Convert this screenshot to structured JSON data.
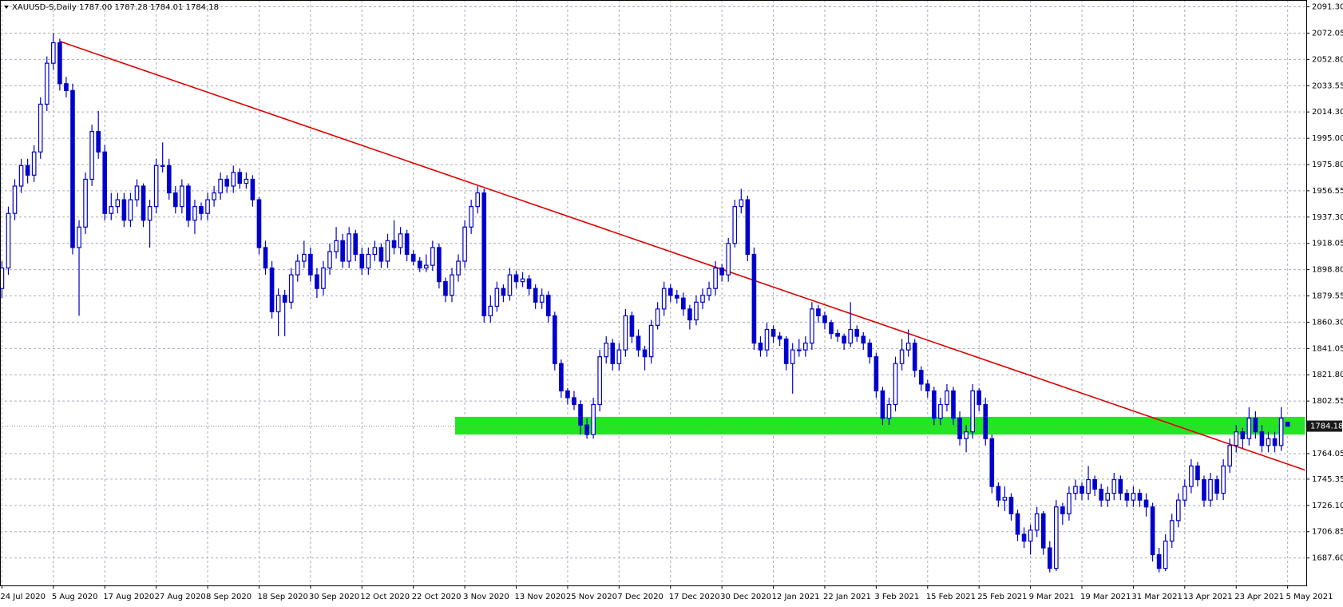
{
  "chart_data": {
    "type": "candlestick",
    "header": "XAUUSD-S,Daily  1787.00 1787.28 1784.01 1784.18",
    "up_color": "#ffffff",
    "down_color": "#0000cd",
    "outline_color": "#0000cd",
    "grid": true,
    "grid_color": "#a7adba",
    "xlim": [
      -0.3,
      202.9
    ],
    "ylim": [
      1667.5,
      2096.3
    ],
    "yticks": [
      {
        "value": 2091.3,
        "label": "2091.30"
      },
      {
        "value": 2072.05,
        "label": "2072.05"
      },
      {
        "value": 2052.8,
        "label": "2052.80"
      },
      {
        "value": 2033.55,
        "label": "2033.55"
      },
      {
        "value": 2014.3,
        "label": "2014.30"
      },
      {
        "value": 1995,
        "label": "1995.00"
      },
      {
        "value": 1975.8,
        "label": "1975.80"
      },
      {
        "value": 1956.55,
        "label": "1956.55"
      },
      {
        "value": 1937.3,
        "label": "1937.30"
      },
      {
        "value": 1918.05,
        "label": "1918.05"
      },
      {
        "value": 1898.8,
        "label": "1898.80"
      },
      {
        "value": 1879.55,
        "label": "1879.55"
      },
      {
        "value": 1860.3,
        "label": "1860.30"
      },
      {
        "value": 1841.05,
        "label": "1841.05"
      },
      {
        "value": 1821.8,
        "label": "1821.80"
      },
      {
        "value": 1802.55,
        "label": "1802.55"
      },
      {
        "value": 1764.05,
        "label": "1764.05"
      },
      {
        "value": 1745.35,
        "label": "1745.35"
      },
      {
        "value": 1726.1,
        "label": "1726.10"
      },
      {
        "value": 1706.85,
        "label": "1706.85"
      },
      {
        "value": 1687.6,
        "label": "1687.60"
      }
    ],
    "current_price": 1784.18,
    "trendline": {
      "color": "#e00000",
      "x": [
        9,
        202.7
      ],
      "y": [
        2066,
        1752
      ]
    },
    "zone": {
      "color": "#22e622",
      "x": [
        70.5,
        202.7
      ],
      "y": [
        1778,
        1791
      ]
    },
    "categories": [
      "24 Jul 2020",
      null,
      null,
      null,
      null,
      null,
      null,
      null,
      "5 Aug 2020",
      null,
      null,
      null,
      null,
      null,
      null,
      null,
      "17 Aug 2020",
      null,
      null,
      null,
      null,
      null,
      null,
      null,
      "27 Aug 2020",
      null,
      null,
      null,
      null,
      null,
      null,
      null,
      "8 Sep 2020",
      null,
      null,
      null,
      null,
      null,
      null,
      null,
      "18 Sep 2020",
      null,
      null,
      null,
      null,
      null,
      null,
      null,
      "30 Sep 2020",
      null,
      null,
      null,
      null,
      null,
      null,
      null,
      "12 Oct 2020",
      null,
      null,
      null,
      null,
      null,
      null,
      null,
      "22 Oct 2020",
      null,
      null,
      null,
      null,
      null,
      null,
      null,
      "3 Nov 2020",
      null,
      null,
      null,
      null,
      null,
      null,
      null,
      "13 Nov 2020",
      null,
      null,
      null,
      null,
      null,
      null,
      null,
      "25 Nov 2020",
      null,
      null,
      null,
      null,
      null,
      null,
      null,
      "7 Dec 2020",
      null,
      null,
      null,
      null,
      null,
      null,
      null,
      "17 Dec 2020",
      null,
      null,
      null,
      null,
      null,
      null,
      null,
      "30 Dec 2020",
      null,
      null,
      null,
      null,
      null,
      null,
      null,
      "12 Jan 2021",
      null,
      null,
      null,
      null,
      null,
      null,
      null,
      "22 Jan 2021",
      null,
      null,
      null,
      null,
      null,
      null,
      null,
      "3 Feb 2021",
      null,
      null,
      null,
      null,
      null,
      null,
      null,
      "15 Feb 2021",
      null,
      null,
      null,
      null,
      null,
      null,
      null,
      "25 Feb 2021",
      null,
      null,
      null,
      null,
      null,
      null,
      null,
      "9 Mar 2021",
      null,
      null,
      null,
      null,
      null,
      null,
      null,
      "19 Mar 2021",
      null,
      null,
      null,
      null,
      null,
      null,
      null,
      "31 Mar 2021",
      null,
      null,
      null,
      null,
      null,
      null,
      null,
      "13 Apr 2021",
      null,
      null,
      null,
      null,
      null,
      null,
      null,
      "23 Apr 2021",
      null,
      null,
      null,
      null,
      null,
      null,
      null,
      "5 May 2021"
    ],
    "open": [
      1885,
      1900,
      1940,
      1960,
      1975,
      1968,
      1985,
      2020,
      2050,
      2065,
      2035,
      2030,
      1915,
      1930,
      1965,
      2000,
      1985,
      1940,
      1945,
      1950,
      1935,
      1950,
      1960,
      1935,
      1945,
      1975,
      1975,
      1955,
      1945,
      1960,
      1935,
      1945,
      1940,
      1950,
      1955,
      1965,
      1960,
      1970,
      1962,
      1965,
      1950,
      1915,
      1900,
      1868,
      1880,
      1875,
      1895,
      1905,
      1910,
      1895,
      1885,
      1900,
      1912,
      1920,
      1905,
      1925,
      1910,
      1900,
      1910,
      1915,
      1905,
      1920,
      1915,
      1925,
      1910,
      1905,
      1900,
      1902,
      1915,
      1890,
      1880,
      1895,
      1905,
      1930,
      1945,
      1955,
      1865,
      1872,
      1885,
      1880,
      1895,
      1890,
      1892,
      1885,
      1875,
      1880,
      1865,
      1830,
      1810,
      1805,
      1800,
      1785,
      1778,
      1800,
      1835,
      1845,
      1830,
      1840,
      1865,
      1850,
      1840,
      1835,
      1858,
      1870,
      1885,
      1880,
      1878,
      1870,
      1862,
      1875,
      1880,
      1885,
      1900,
      1895,
      1918,
      1945,
      1950,
      1910,
      1845,
      1840,
      1855,
      1850,
      1848,
      1830,
      1840,
      1840,
      1845,
      1870,
      1865,
      1860,
      1852,
      1850,
      1845,
      1855,
      1850,
      1845,
      1835,
      1810,
      1790,
      1800,
      1830,
      1840,
      1845,
      1825,
      1815,
      1810,
      1790,
      1800,
      1810,
      1790,
      1775,
      1780,
      1810,
      1800,
      1775,
      1740,
      1730,
      1732,
      1720,
      1705,
      1700,
      1708,
      1720,
      1695,
      1680,
      1725,
      1720,
      1735,
      1740,
      1735,
      1745,
      1738,
      1730,
      1735,
      1745,
      1735,
      1730,
      1735,
      1730,
      1725,
      1690,
      1680,
      1700,
      1715,
      1730,
      1740,
      1755,
      1745,
      1730,
      1745,
      1735,
      1755,
      1770,
      1780,
      1775,
      1790,
      1780,
      1770,
      1775,
      1770,
      1787
    ],
    "high": [
      1905,
      1945,
      1965,
      1980,
      1980,
      1990,
      2025,
      2055,
      2072,
      2068,
      2040,
      2035,
      1935,
      1970,
      2005,
      2015,
      1990,
      1955,
      1955,
      1955,
      1955,
      1965,
      1962,
      1950,
      1980,
      1992,
      1980,
      1960,
      1965,
      1962,
      1950,
      1948,
      1955,
      1960,
      1970,
      1968,
      1975,
      1973,
      1970,
      1968,
      1952,
      1920,
      1905,
      1885,
      1884,
      1900,
      1910,
      1920,
      1915,
      1900,
      1905,
      1918,
      1930,
      1925,
      1930,
      1928,
      1915,
      1915,
      1920,
      1918,
      1925,
      1935,
      1930,
      1928,
      1913,
      1908,
      1910,
      1920,
      1918,
      1893,
      1900,
      1910,
      1935,
      1950,
      1960,
      1958,
      1880,
      1890,
      1888,
      1900,
      1898,
      1897,
      1895,
      1888,
      1885,
      1883,
      1868,
      1833,
      1812,
      1810,
      1803,
      1790,
      1805,
      1840,
      1850,
      1848,
      1845,
      1870,
      1868,
      1855,
      1843,
      1862,
      1875,
      1890,
      1888,
      1884,
      1882,
      1873,
      1880,
      1885,
      1890,
      1905,
      1903,
      1922,
      1950,
      1958,
      1953,
      1915,
      1850,
      1860,
      1858,
      1853,
      1850,
      1845,
      1848,
      1850,
      1875,
      1873,
      1868,
      1862,
      1855,
      1852,
      1875,
      1858,
      1853,
      1848,
      1838,
      1813,
      1805,
      1835,
      1848,
      1855,
      1848,
      1828,
      1818,
      1813,
      1805,
      1815,
      1813,
      1795,
      1785,
      1815,
      1812,
      1805,
      1778,
      1743,
      1740,
      1735,
      1723,
      1710,
      1712,
      1725,
      1722,
      1700,
      1730,
      1728,
      1740,
      1745,
      1743,
      1755,
      1748,
      1742,
      1740,
      1750,
      1748,
      1738,
      1740,
      1738,
      1735,
      1728,
      1695,
      1705,
      1720,
      1735,
      1745,
      1760,
      1758,
      1748,
      1750,
      1748,
      1760,
      1775,
      1785,
      1783,
      1798,
      1795,
      1785,
      1780,
      1780,
      1798,
      1787.28
    ],
    "low": [
      1878,
      1895,
      1935,
      1955,
      1962,
      1963,
      1980,
      2015,
      2045,
      2030,
      2025,
      1910,
      1865,
      1925,
      1960,
      1980,
      1935,
      1935,
      1940,
      1930,
      1930,
      1945,
      1930,
      1915,
      1940,
      1970,
      1950,
      1940,
      1940,
      1930,
      1925,
      1935,
      1935,
      1945,
      1950,
      1955,
      1955,
      1958,
      1958,
      1945,
      1910,
      1895,
      1863,
      1850,
      1850,
      1870,
      1890,
      1900,
      1890,
      1878,
      1880,
      1895,
      1907,
      1900,
      1900,
      1905,
      1895,
      1895,
      1905,
      1900,
      1900,
      1910,
      1910,
      1905,
      1902,
      1897,
      1897,
      1898,
      1885,
      1875,
      1875,
      1890,
      1900,
      1925,
      1940,
      1860,
      1860,
      1868,
      1875,
      1876,
      1885,
      1886,
      1880,
      1870,
      1870,
      1860,
      1825,
      1805,
      1800,
      1796,
      1778,
      1775,
      1775,
      1795,
      1830,
      1825,
      1825,
      1835,
      1845,
      1835,
      1825,
      1830,
      1855,
      1865,
      1875,
      1874,
      1865,
      1855,
      1858,
      1870,
      1876,
      1880,
      1890,
      1890,
      1915,
      1940,
      1905,
      1840,
      1835,
      1835,
      1845,
      1843,
      1825,
      1808,
      1835,
      1835,
      1840,
      1860,
      1855,
      1848,
      1846,
      1840,
      1842,
      1846,
      1840,
      1830,
      1805,
      1785,
      1785,
      1795,
      1825,
      1835,
      1820,
      1810,
      1805,
      1785,
      1785,
      1795,
      1785,
      1770,
      1765,
      1775,
      1795,
      1770,
      1735,
      1725,
      1722,
      1715,
      1700,
      1695,
      1690,
      1703,
      1690,
      1677,
      1678,
      1712,
      1715,
      1730,
      1730,
      1730,
      1733,
      1725,
      1725,
      1730,
      1730,
      1725,
      1725,
      1725,
      1718,
      1685,
      1677,
      1678,
      1695,
      1710,
      1725,
      1735,
      1740,
      1725,
      1725,
      1730,
      1730,
      1750,
      1765,
      1768,
      1770,
      1775,
      1765,
      1765,
      1765,
      1766,
      1784.01
    ],
    "close": [
      1900,
      1940,
      1960,
      1975,
      1968,
      1985,
      2020,
      2050,
      2065,
      2035,
      2030,
      1915,
      1930,
      1965,
      2000,
      1985,
      1940,
      1945,
      1950,
      1935,
      1950,
      1960,
      1935,
      1945,
      1975,
      1975,
      1955,
      1945,
      1960,
      1935,
      1945,
      1940,
      1950,
      1955,
      1965,
      1960,
      1970,
      1962,
      1965,
      1950,
      1915,
      1900,
      1868,
      1880,
      1875,
      1895,
      1905,
      1910,
      1895,
      1885,
      1900,
      1912,
      1920,
      1905,
      1925,
      1910,
      1900,
      1910,
      1915,
      1905,
      1920,
      1915,
      1925,
      1910,
      1905,
      1900,
      1902,
      1915,
      1890,
      1880,
      1895,
      1905,
      1930,
      1945,
      1955,
      1865,
      1872,
      1885,
      1880,
      1895,
      1890,
      1892,
      1885,
      1875,
      1880,
      1865,
      1830,
      1810,
      1805,
      1800,
      1785,
      1778,
      1800,
      1835,
      1845,
      1830,
      1840,
      1865,
      1850,
      1840,
      1835,
      1858,
      1870,
      1885,
      1880,
      1878,
      1870,
      1862,
      1875,
      1880,
      1885,
      1900,
      1895,
      1918,
      1945,
      1950,
      1910,
      1845,
      1840,
      1855,
      1850,
      1848,
      1830,
      1840,
      1840,
      1845,
      1870,
      1865,
      1860,
      1852,
      1850,
      1845,
      1855,
      1850,
      1845,
      1835,
      1810,
      1790,
      1800,
      1830,
      1840,
      1845,
      1825,
      1815,
      1810,
      1790,
      1800,
      1810,
      1790,
      1775,
      1780,
      1810,
      1800,
      1775,
      1740,
      1730,
      1732,
      1720,
      1705,
      1700,
      1708,
      1720,
      1695,
      1680,
      1725,
      1720,
      1735,
      1740,
      1735,
      1745,
      1738,
      1730,
      1735,
      1745,
      1735,
      1730,
      1735,
      1730,
      1725,
      1690,
      1680,
      1700,
      1715,
      1730,
      1740,
      1755,
      1745,
      1730,
      1745,
      1735,
      1755,
      1770,
      1780,
      1775,
      1790,
      1780,
      1770,
      1775,
      1770,
      1790,
      1784.18
    ]
  }
}
